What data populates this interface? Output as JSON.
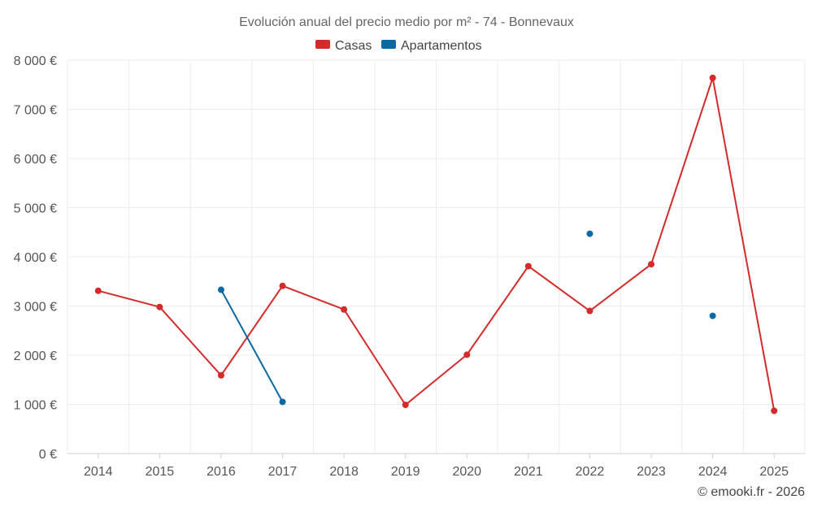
{
  "credit": "© emooki.fr - 2026",
  "colors": {
    "casas": "#d32a2a",
    "apartamentos": "#0a6aa1"
  },
  "chart_data": {
    "type": "line",
    "title": "Evolución anual del precio medio por m² - 74 - Bonnevaux",
    "xlabel": "",
    "ylabel": "",
    "categories": [
      "2014",
      "2015",
      "2016",
      "2017",
      "2018",
      "2019",
      "2020",
      "2021",
      "2022",
      "2023",
      "2024",
      "2025"
    ],
    "ylim": [
      0,
      8000
    ],
    "yticks": [
      0,
      1000,
      2000,
      3000,
      4000,
      5000,
      6000,
      7000,
      8000
    ],
    "ytick_labels": [
      "0 €",
      "1 000 €",
      "2 000 €",
      "3 000 €",
      "4 000 €",
      "5 000 €",
      "6 000 €",
      "7 000 €",
      "8 000 €"
    ],
    "grid": true,
    "legend_position": "top-center",
    "series": [
      {
        "name": "Casas",
        "color": "#d32a2a",
        "values": [
          3310,
          2980,
          1590,
          3410,
          2930,
          990,
          2010,
          3810,
          2900,
          3850,
          7640,
          870
        ]
      },
      {
        "name": "Apartamentos",
        "color": "#0a6aa1",
        "values": [
          null,
          null,
          3330,
          1050,
          null,
          null,
          null,
          null,
          4470,
          null,
          2800,
          null
        ]
      }
    ]
  }
}
